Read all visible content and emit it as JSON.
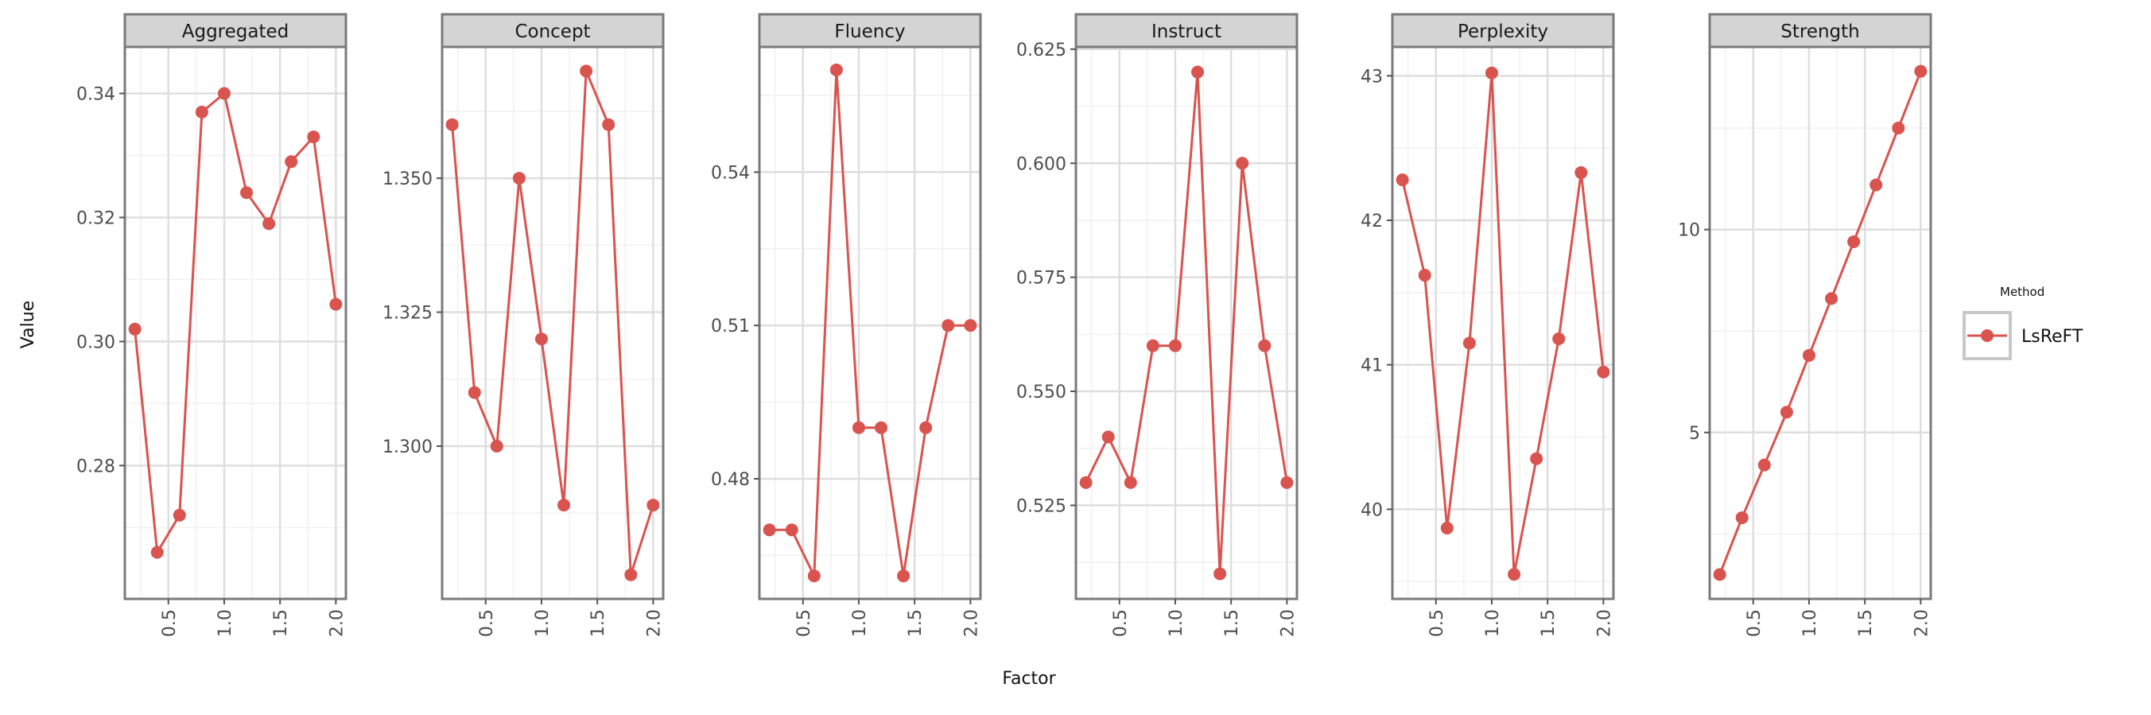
{
  "chart_data": {
    "type": "line",
    "xlabel": "Factor",
    "ylabel": "Value",
    "x": [
      0.2,
      0.4,
      0.6,
      0.8,
      1.0,
      1.2,
      1.4,
      1.6,
      1.8,
      2.0
    ],
    "x_ticks": [
      "0.5",
      "1.0",
      "1.5",
      "2.0"
    ],
    "x_tick_values": [
      0.5,
      1.0,
      1.5,
      2.0
    ],
    "legend": {
      "title": "Method",
      "entries": [
        "LsReFT"
      ],
      "position": "right"
    },
    "series_color": "#d9534f",
    "grid": true,
    "facets": [
      {
        "title": "Aggregated",
        "values": [
          0.302,
          0.266,
          0.272,
          0.337,
          0.34,
          0.324,
          0.319,
          0.329,
          0.333,
          0.306
        ],
        "ylim": [
          0.2585,
          0.3475
        ],
        "y_ticks": [
          0.28,
          0.3,
          0.32,
          0.34
        ],
        "y_tick_labels": [
          "0.28",
          "0.30",
          "0.32",
          "0.34"
        ]
      },
      {
        "title": "Concept",
        "values": [
          1.36,
          1.31,
          1.3,
          1.35,
          1.32,
          1.289,
          1.37,
          1.36,
          1.276,
          1.289
        ],
        "ylim": [
          1.2715,
          1.3745
        ],
        "y_ticks": [
          1.3,
          1.325,
          1.35
        ],
        "y_tick_labels": [
          "1.300",
          "1.325",
          "1.350"
        ]
      },
      {
        "title": "Fluency",
        "values": [
          0.47,
          0.47,
          0.461,
          0.56,
          0.49,
          0.49,
          0.461,
          0.49,
          0.51,
          0.51
        ],
        "ylim": [
          0.4565,
          0.5645
        ],
        "y_ticks": [
          0.48,
          0.51,
          0.54
        ],
        "y_tick_labels": [
          "0.48",
          "0.51",
          "0.54"
        ]
      },
      {
        "title": "Instruct",
        "values": [
          0.53,
          0.54,
          0.53,
          0.56,
          0.56,
          0.62,
          0.51,
          0.6,
          0.56,
          0.53
        ],
        "ylim": [
          0.5045,
          0.6255
        ],
        "y_ticks": [
          0.525,
          0.55,
          0.575,
          0.6,
          0.625
        ],
        "y_tick_labels": [
          "0.525",
          "0.550",
          "0.575",
          "0.600",
          "0.625"
        ]
      },
      {
        "title": "Perplexity",
        "values": [
          42.28,
          41.62,
          39.87,
          41.15,
          43.02,
          39.55,
          40.35,
          41.18,
          42.33,
          40.95
        ],
        "ylim": [
          39.38,
          43.2
        ],
        "y_ticks": [
          40,
          41,
          42,
          43
        ],
        "y_tick_labels": [
          "40",
          "41",
          "42",
          "43"
        ]
      },
      {
        "title": "Strength",
        "values": [
          1.5,
          2.9,
          4.2,
          5.5,
          6.9,
          8.3,
          9.7,
          11.1,
          12.5,
          13.9
        ],
        "ylim": [
          0.9,
          14.5
        ],
        "y_ticks": [
          5,
          10
        ],
        "y_tick_labels": [
          "5",
          "10"
        ]
      }
    ]
  }
}
